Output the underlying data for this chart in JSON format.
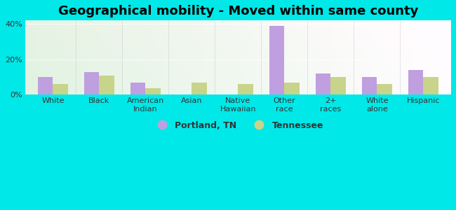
{
  "title": "Geographical mobility - Moved within same county",
  "categories": [
    "White",
    "Black",
    "American\nIndian",
    "Asian",
    "Native\nHawaiian",
    "Other\nrace",
    "2+\nraces",
    "White\nalone",
    "Hispanic"
  ],
  "portland": [
    10,
    13,
    7,
    0,
    0,
    39,
    12,
    10,
    14
  ],
  "tennessee": [
    6,
    11,
    3.5,
    7,
    6,
    7,
    10,
    6,
    10
  ],
  "portland_color": "#bf9fdf",
  "tennessee_color": "#c8d48a",
  "ylim": [
    0,
    42
  ],
  "yticks": [
    0,
    20,
    40
  ],
  "ytick_labels": [
    "0%",
    "20%",
    "40%"
  ],
  "bg_color": "#00e8e8",
  "legend_portland": "Portland, TN",
  "legend_tennessee": "Tennessee",
  "bar_width": 0.32,
  "title_fontsize": 13,
  "tick_fontsize": 8,
  "legend_fontsize": 9
}
